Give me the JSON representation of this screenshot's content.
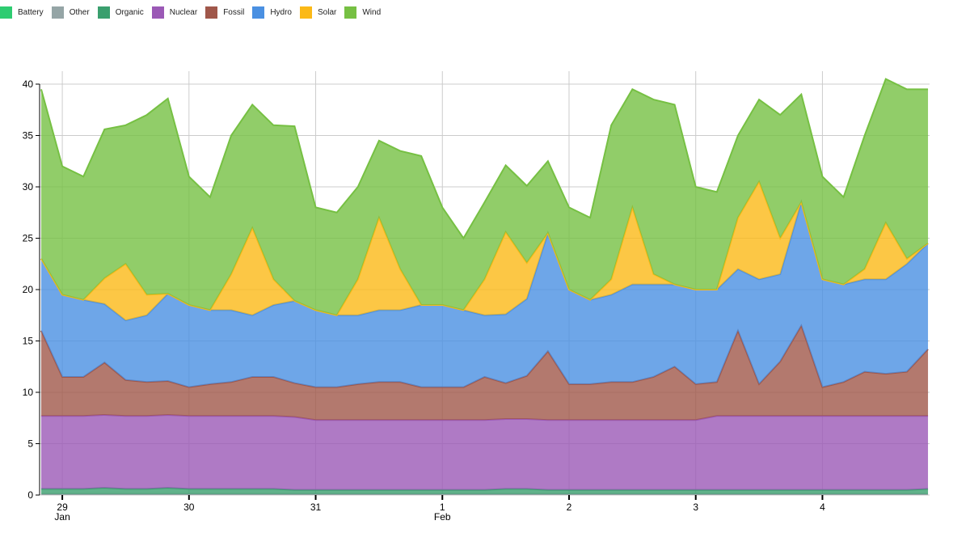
{
  "chart_data": {
    "type": "area",
    "stacked": true,
    "title": "",
    "xlabel": "",
    "ylabel": "",
    "ylim": [
      0,
      40
    ],
    "xlim_hours": [
      -4.3,
      164.3
    ],
    "grid": true,
    "legend_position": "top-left",
    "yticks": [
      {
        "v": 0,
        "label": "0"
      },
      {
        "v": 5,
        "label": "5"
      },
      {
        "v": 10,
        "label": "10"
      },
      {
        "v": 15,
        "label": "15"
      },
      {
        "v": 20,
        "label": "20"
      },
      {
        "v": 25,
        "label": "25"
      },
      {
        "v": 30,
        "label": "30"
      },
      {
        "v": 35,
        "label": "35"
      },
      {
        "v": 40,
        "label": "40"
      }
    ],
    "xticks": [
      {
        "h": 0,
        "label": "29",
        "sub": "Jan"
      },
      {
        "h": 24,
        "label": "30",
        "sub": ""
      },
      {
        "h": 48,
        "label": "31",
        "sub": ""
      },
      {
        "h": 72,
        "label": "1",
        "sub": "Feb"
      },
      {
        "h": 96,
        "label": "2",
        "sub": ""
      },
      {
        "h": 120,
        "label": "3",
        "sub": ""
      },
      {
        "h": 144,
        "label": "4",
        "sub": ""
      }
    ],
    "x_hours": [
      -4,
      0,
      4,
      8,
      12,
      16,
      20,
      24,
      28,
      32,
      36,
      40,
      44,
      48,
      52,
      56,
      60,
      64,
      68,
      72,
      76,
      80,
      84,
      88,
      92,
      96,
      100,
      104,
      108,
      112,
      116,
      120,
      124,
      128,
      132,
      136,
      140,
      144,
      148,
      152,
      156,
      160,
      164
    ],
    "series": [
      {
        "name": "Battery",
        "color": "#2ecc71",
        "values": [
          0,
          0,
          0,
          0,
          0,
          0,
          0,
          0,
          0,
          0,
          0,
          0,
          0,
          0,
          0,
          0,
          0,
          0,
          0,
          0,
          0,
          0,
          0,
          0,
          0,
          0,
          0,
          0,
          0,
          0,
          0,
          0,
          0,
          0,
          0,
          0,
          0,
          0,
          0,
          0,
          0,
          0,
          0
        ]
      },
      {
        "name": "Other",
        "color": "#95a5a6",
        "values": [
          0.1,
          0.1,
          0.1,
          0.1,
          0.1,
          0.1,
          0.1,
          0.1,
          0.1,
          0.1,
          0.1,
          0.1,
          0.1,
          0.1,
          0.1,
          0.1,
          0.1,
          0.1,
          0.1,
          0.1,
          0.1,
          0.1,
          0.1,
          0.1,
          0.1,
          0.1,
          0.1,
          0.1,
          0.1,
          0.1,
          0.1,
          0.1,
          0.1,
          0.1,
          0.1,
          0.1,
          0.1,
          0.1,
          0.1,
          0.1,
          0.1,
          0.1,
          0.1
        ]
      },
      {
        "name": "Organic",
        "color": "#3a9f6e",
        "values": [
          0.5,
          0.5,
          0.5,
          0.6,
          0.5,
          0.5,
          0.6,
          0.5,
          0.5,
          0.5,
          0.5,
          0.5,
          0.4,
          0.4,
          0.4,
          0.4,
          0.4,
          0.4,
          0.4,
          0.4,
          0.4,
          0.4,
          0.5,
          0.5,
          0.4,
          0.4,
          0.4,
          0.4,
          0.4,
          0.4,
          0.4,
          0.4,
          0.4,
          0.4,
          0.4,
          0.4,
          0.4,
          0.4,
          0.4,
          0.4,
          0.4,
          0.4,
          0.5
        ]
      },
      {
        "name": "Nuclear",
        "color": "#9b59b6",
        "values": [
          7.1,
          7.1,
          7.1,
          7.1,
          7.1,
          7.1,
          7.1,
          7.1,
          7.1,
          7.1,
          7.1,
          7.1,
          7.1,
          6.8,
          6.8,
          6.8,
          6.8,
          6.8,
          6.8,
          6.8,
          6.8,
          6.8,
          6.8,
          6.8,
          6.8,
          6.8,
          6.8,
          6.8,
          6.8,
          6.8,
          6.8,
          6.8,
          7.2,
          7.2,
          7.2,
          7.2,
          7.2,
          7.2,
          7.2,
          7.2,
          7.2,
          7.2,
          7.1
        ]
      },
      {
        "name": "Fossil",
        "color": "#a0574a",
        "values": [
          8.3,
          3.8,
          3.8,
          5.1,
          3.5,
          3.3,
          3.3,
          2.8,
          3.1,
          3.3,
          3.8,
          3.8,
          3.3,
          3.2,
          3.2,
          3.5,
          3.7,
          3.7,
          3.2,
          3.2,
          3.2,
          4.2,
          3.5,
          4.2,
          6.7,
          3.5,
          3.5,
          3.7,
          3.7,
          4.2,
          5.2,
          3.5,
          3.3,
          8.3,
          3.1,
          5.3,
          8.8,
          2.8,
          3.3,
          4.3,
          4.1,
          4.3,
          6.5
        ]
      },
      {
        "name": "Hydro",
        "color": "#4a90e2",
        "values": [
          7,
          8,
          7.5,
          5.7,
          5.8,
          6.5,
          8.5,
          8,
          7.2,
          7,
          6,
          7,
          8,
          7.5,
          7,
          6.7,
          7,
          7,
          8,
          8,
          7.5,
          6,
          6.7,
          7.5,
          11.5,
          9.2,
          8.2,
          8.5,
          9.5,
          9,
          8,
          9.2,
          9,
          6,
          10.2,
          8.5,
          12,
          10.5,
          9.5,
          9,
          9.2,
          10.5,
          10.3
        ]
      },
      {
        "name": "Solar",
        "color": "#fbb917",
        "values": [
          0,
          0,
          0,
          2.5,
          5.5,
          2,
          0,
          0,
          0,
          3.5,
          8.5,
          2.5,
          0,
          0,
          0,
          3.5,
          9,
          4,
          0,
          0,
          0,
          3.5,
          8,
          3.5,
          0,
          0,
          0,
          1.5,
          7.5,
          1,
          0,
          0,
          0,
          5,
          9.5,
          3.5,
          0,
          0,
          0,
          1,
          5.5,
          0.5,
          0
        ]
      },
      {
        "name": "Wind",
        "color": "#76c043",
        "values": [
          16.5,
          12.5,
          12,
          14.5,
          13.5,
          17.5,
          19,
          12.5,
          11,
          13.5,
          12,
          15,
          17,
          10,
          10,
          9,
          7.5,
          11.5,
          14.5,
          9.5,
          7,
          7.5,
          6.5,
          7.5,
          7,
          8,
          8,
          15,
          11.5,
          17,
          17.5,
          10,
          9.5,
          8,
          8,
          12,
          10.5,
          10,
          8.5,
          13,
          14,
          16.5,
          15
        ]
      }
    ]
  }
}
